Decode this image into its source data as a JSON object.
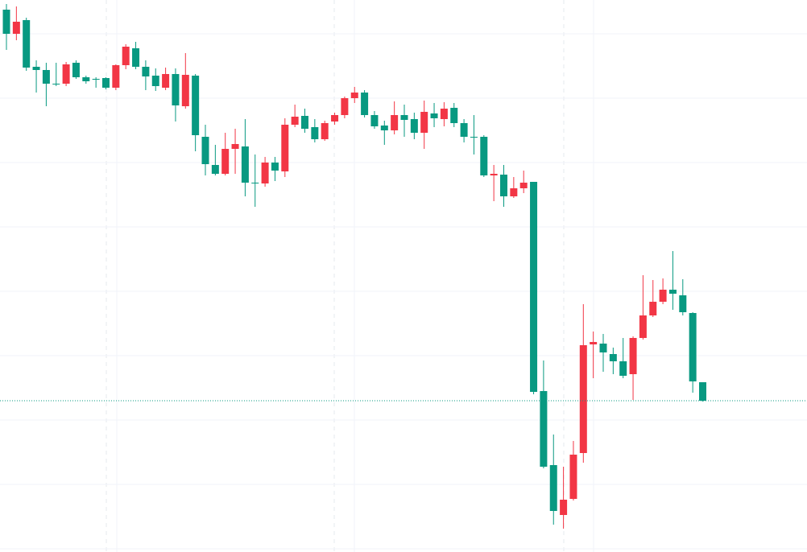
{
  "chart_data": {
    "type": "candlestick",
    "open": [
      674,
      644,
      661,
      603,
      599,
      582,
      582,
      608,
      590,
      588,
      589,
      577,
      605,
      626,
      603,
      592,
      577,
      594,
      554,
      592,
      516,
      481,
      470,
      501,
      504,
      459,
      458,
      484,
      473,
      531,
      542,
      528,
      513,
      535,
      543,
      564,
      571,
      543,
      530,
      524,
      543,
      538,
      521,
      545,
      538,
      552,
      533,
      516,
      516,
      468,
      469,
      442,
      452,
      460,
      200,
      108,
      46,
      66,
      123,
      258,
      259,
      246,
      237,
      221,
      266,
      294,
      311,
      326,
      319,
      297,
      211
    ],
    "high": [
      681,
      678,
      664,
      611,
      608,
      608,
      609,
      611,
      592,
      590,
      590,
      606,
      631,
      634,
      611,
      601,
      602,
      601,
      620,
      594,
      531,
      506,
      521,
      526,
      538,
      494,
      491,
      491,
      539,
      556,
      551,
      538,
      536,
      546,
      566,
      578,
      574,
      548,
      536,
      560,
      556,
      546,
      561,
      558,
      559,
      558,
      538,
      543,
      518,
      481,
      481,
      466,
      474,
      460,
      238,
      146,
      106,
      138,
      308,
      274,
      271,
      254,
      266,
      268,
      344,
      338,
      340,
      374,
      339,
      298,
      211
    ],
    "low": [
      624,
      636,
      598,
      571,
      554,
      579,
      579,
      588,
      582,
      577,
      575,
      574,
      600,
      600,
      574,
      573,
      574,
      535,
      551,
      498,
      468,
      468,
      468,
      470,
      442,
      429,
      454,
      461,
      466,
      528,
      521,
      509,
      511,
      531,
      539,
      558,
      540,
      526,
      506,
      519,
      516,
      513,
      501,
      528,
      529,
      528,
      509,
      494,
      466,
      436,
      429,
      440,
      446,
      196,
      104,
      34,
      29,
      64,
      111,
      216,
      224,
      221,
      216,
      189,
      264,
      292,
      308,
      301,
      294,
      198,
      187
    ],
    "close": [
      644,
      659,
      602,
      599,
      582,
      581,
      606,
      590,
      585,
      587,
      577,
      605,
      628,
      603,
      591,
      579,
      594,
      555,
      593,
      518,
      482,
      470,
      501,
      507,
      459,
      458,
      484,
      474,
      531,
      541,
      526,
      513,
      533,
      543,
      564,
      571,
      543,
      529,
      524,
      543,
      537,
      521,
      547,
      539,
      551,
      533,
      516,
      515,
      468,
      470,
      442,
      452,
      459,
      199,
      106,
      51,
      65,
      121,
      257,
      261,
      248,
      237,
      219,
      266,
      294,
      311,
      326,
      321,
      298,
      212,
      188
    ],
    "up_color": "#f23645",
    "down_color": "#089981",
    "ylim": [
      0,
      686
    ],
    "yticks": [
      644,
      564,
      484,
      404,
      324,
      244,
      164,
      84,
      4
    ],
    "grid": true,
    "last_price": 188
  }
}
